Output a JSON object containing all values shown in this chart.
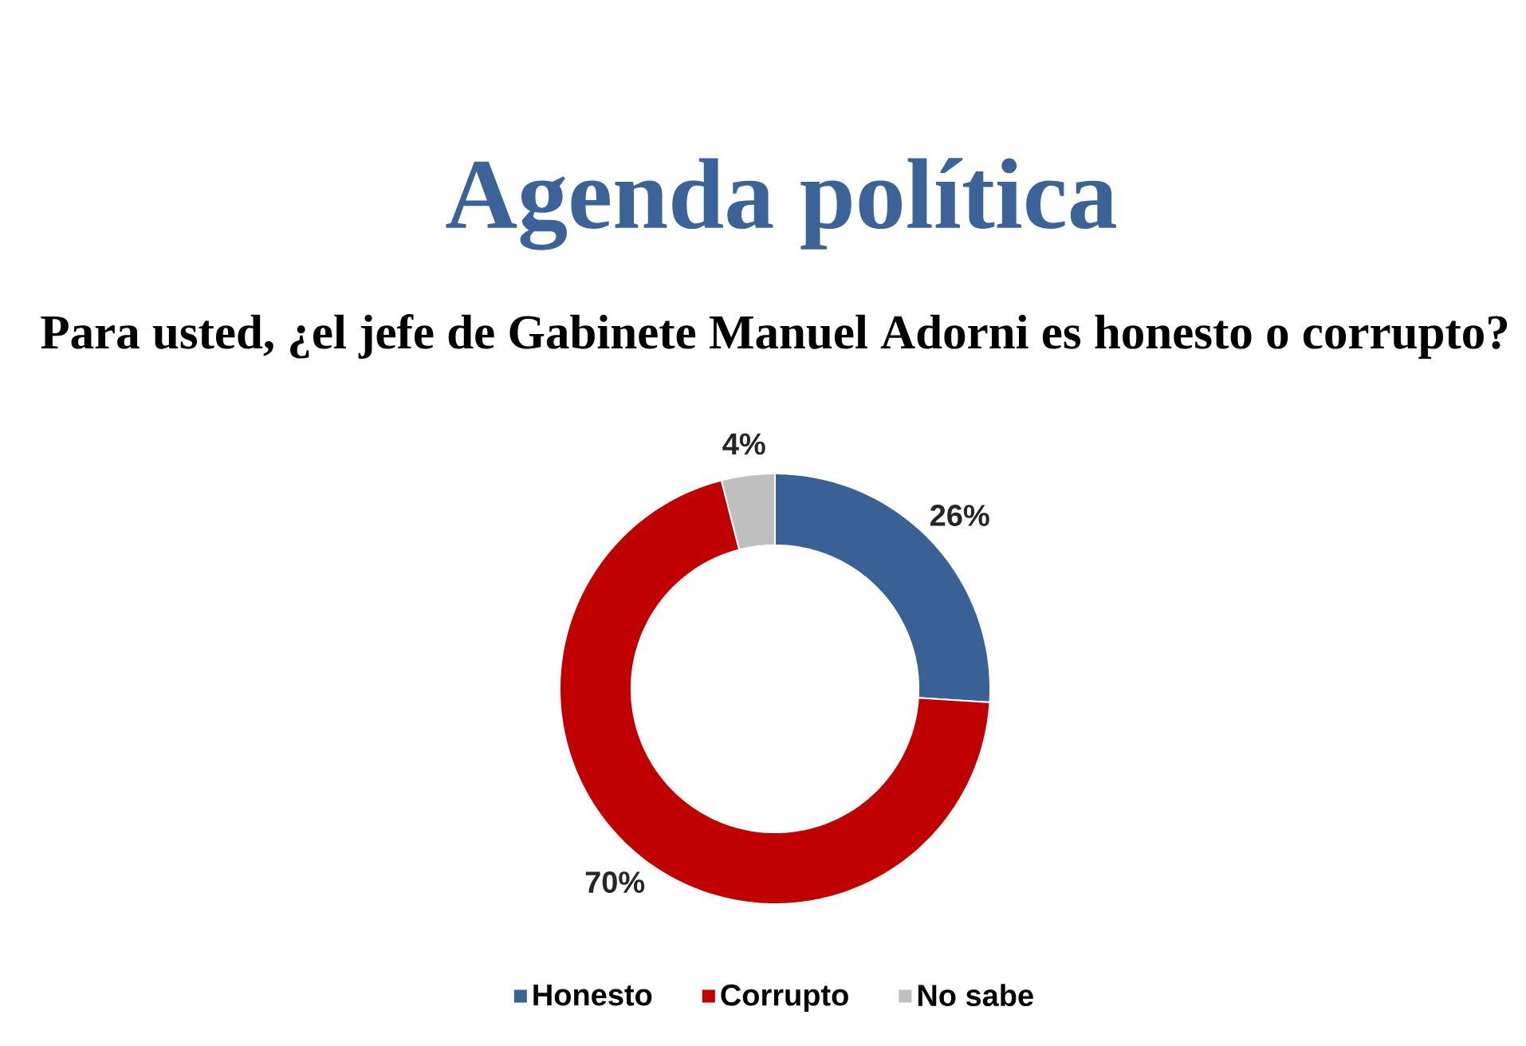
{
  "chart_data": {
    "type": "donut",
    "title": "Agenda política",
    "subtitle": "Para usted, ¿el jefe de Gabinete Manuel Adorni es honesto o corrupto?",
    "categories": [
      "Honesto",
      "Corrupto",
      "No sabe"
    ],
    "values": [
      26,
      70,
      4
    ],
    "colors": [
      "#3a6196",
      "#c00000",
      "#bfbfbf"
    ],
    "value_labels": [
      "26%",
      "70%",
      "4%"
    ],
    "legend": "bottom"
  }
}
